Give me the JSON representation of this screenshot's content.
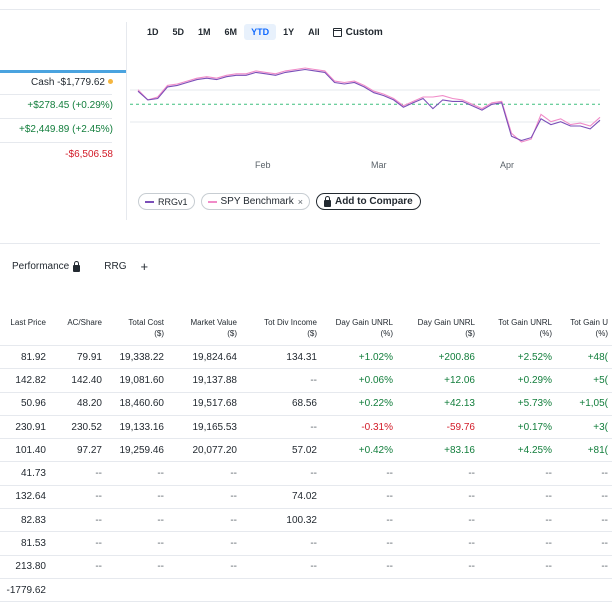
{
  "summary": {
    "cash_label": "Cash",
    "cash_value": "-$1,779.62",
    "day_gain": "+$278.45 (+0.29%)",
    "total_gain": "+$2,449.89 (+2.45%)",
    "other_value": "-$6,506.58"
  },
  "ranges": [
    "1D",
    "5D",
    "1M",
    "6M",
    "YTD",
    "1Y",
    "All"
  ],
  "active_range": "YTD",
  "custom_label": "Custom",
  "chart_data": {
    "type": "line",
    "x_labels": [
      "Feb",
      "Mar",
      "Apr"
    ],
    "baseline": 0,
    "series": [
      {
        "name": "RRGv1",
        "color": "#7b4fb8",
        "values": [
          0.9,
          0.3,
          0.4,
          1.2,
          1.3,
          1.5,
          1.7,
          1.8,
          1.7,
          1.9,
          2.0,
          2.0,
          2.2,
          2.1,
          2.0,
          2.2,
          2.3,
          2.4,
          2.3,
          2.2,
          1.5,
          1.4,
          1.5,
          1.2,
          0.8,
          0.6,
          0.3,
          -0.2,
          0.1,
          0.4,
          -0.3,
          0.3,
          0.2,
          0.2,
          -0.1,
          -0.4,
          0.0,
          0.1,
          -2.2,
          -2.5,
          -2.3,
          -1.0,
          -1.4,
          -1.2,
          -1.5,
          -1.5,
          -1.7,
          -1.1
        ]
      },
      {
        "name": "SPY Benchmark",
        "color": "#f08bc8",
        "values": [
          1.0,
          0.3,
          0.5,
          1.3,
          1.4,
          1.6,
          1.8,
          1.9,
          1.8,
          2.0,
          2.1,
          2.1,
          2.3,
          2.2,
          2.1,
          2.3,
          2.4,
          2.5,
          2.4,
          2.3,
          1.6,
          1.5,
          1.6,
          1.3,
          0.9,
          0.7,
          0.4,
          -0.1,
          0.2,
          0.5,
          0.5,
          0.6,
          0.4,
          0.3,
          0.0,
          -0.3,
          0.1,
          0.2,
          -2.0,
          -2.6,
          -2.4,
          -0.7,
          -1.2,
          -1.0,
          -1.4,
          -1.3,
          -1.5,
          -0.9
        ]
      }
    ]
  },
  "legend": {
    "series1": "RRGv1",
    "series2": "SPY Benchmark",
    "remove": "×",
    "compare": "Add to Compare"
  },
  "tabs": {
    "performance": "Performance",
    "rrg": "RRG",
    "add": "+"
  },
  "table": {
    "headers": [
      [
        "Last Price",
        ""
      ],
      [
        "AC/Share",
        ""
      ],
      [
        "Total Cost",
        "($)"
      ],
      [
        "Market Value",
        "($)"
      ],
      [
        "Tot Div Income",
        "($)"
      ],
      [
        "Day Gain UNRL",
        "(%)"
      ],
      [
        "Day Gain UNRL",
        "($)"
      ],
      [
        "Tot Gain UNRL",
        "(%)"
      ],
      [
        "Tot Gain U",
        "(%)"
      ]
    ],
    "rows": [
      [
        "81.92",
        "79.91",
        "19,338.22",
        "19,824.64",
        "134.31",
        "+1.02%",
        "+200.86",
        "+2.52%",
        "+48("
      ],
      [
        "142.82",
        "142.40",
        "19,081.60",
        "19,137.88",
        "--",
        "+0.06%",
        "+12.06",
        "+0.29%",
        "+5("
      ],
      [
        "50.96",
        "48.20",
        "18,460.60",
        "19,517.68",
        "68.56",
        "+0.22%",
        "+42.13",
        "+5.73%",
        "+1,05("
      ],
      [
        "230.91",
        "230.52",
        "19,133.16",
        "19,165.53",
        "--",
        "-0.31%",
        "-59.76",
        "+0.17%",
        "+3("
      ],
      [
        "101.40",
        "97.27",
        "19,259.46",
        "20,077.20",
        "57.02",
        "+0.42%",
        "+83.16",
        "+4.25%",
        "+81("
      ],
      [
        "41.73",
        "--",
        "--",
        "--",
        "--",
        "--",
        "--",
        "--",
        "--"
      ],
      [
        "132.64",
        "--",
        "--",
        "--",
        "74.02",
        "--",
        "--",
        "--",
        "--"
      ],
      [
        "82.83",
        "--",
        "--",
        "--",
        "100.32",
        "--",
        "--",
        "--",
        "--"
      ],
      [
        "81.53",
        "--",
        "--",
        "--",
        "--",
        "--",
        "--",
        "--",
        "--"
      ],
      [
        "213.80",
        "--",
        "--",
        "--",
        "--",
        "--",
        "--",
        "--",
        "--"
      ],
      [
        "-1779.62",
        "",
        "",
        "",
        "",
        "",
        "",
        "",
        ""
      ]
    ]
  }
}
